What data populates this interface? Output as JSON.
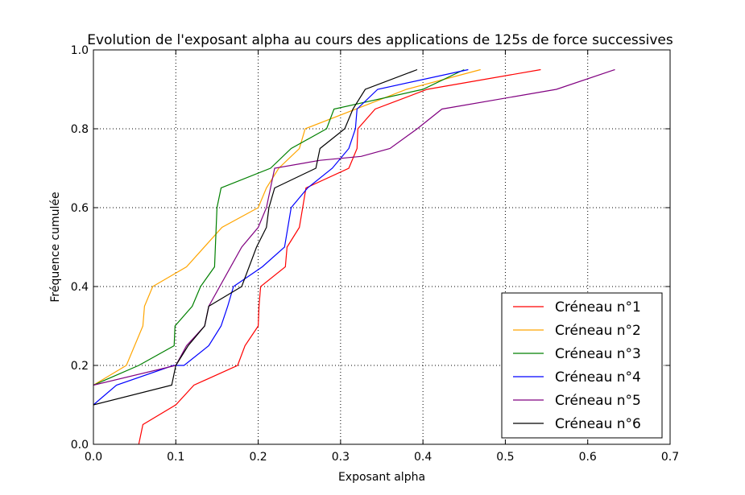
{
  "chart_data": {
    "type": "line",
    "title": "Evolution de l'exposant alpha au cours des applications de 125s de force successives",
    "xlabel": "Exposant alpha",
    "ylabel": "Fréquence cumulée",
    "xlim": [
      0.0,
      0.7
    ],
    "ylim": [
      0.0,
      1.0
    ],
    "xticks": [
      "0.0",
      "0.1",
      "0.2",
      "0.3",
      "0.4",
      "0.5",
      "0.6",
      "0.7"
    ],
    "yticks": [
      "0.0",
      "0.2",
      "0.4",
      "0.6",
      "0.8",
      "1.0"
    ],
    "grid": true,
    "legend_position": "bottom-right",
    "series": [
      {
        "name": "Créneau n°1",
        "color": "#ff0000",
        "points": [
          [
            0.055,
            0.0
          ],
          [
            0.06,
            0.05
          ],
          [
            0.1,
            0.1
          ],
          [
            0.122,
            0.15
          ],
          [
            0.175,
            0.2
          ],
          [
            0.184,
            0.25
          ],
          [
            0.2,
            0.3
          ],
          [
            0.201,
            0.35
          ],
          [
            0.203,
            0.4
          ],
          [
            0.233,
            0.45
          ],
          [
            0.235,
            0.5
          ],
          [
            0.25,
            0.55
          ],
          [
            0.254,
            0.6
          ],
          [
            0.258,
            0.65
          ],
          [
            0.31,
            0.7
          ],
          [
            0.32,
            0.75
          ],
          [
            0.321,
            0.8
          ],
          [
            0.342,
            0.85
          ],
          [
            0.405,
            0.9
          ],
          [
            0.543,
            0.95
          ]
        ]
      },
      {
        "name": "Créneau n°2",
        "color": "#ffa500",
        "points": [
          [
            0.0,
            0.15
          ],
          [
            0.04,
            0.2
          ],
          [
            0.06,
            0.3
          ],
          [
            0.062,
            0.35
          ],
          [
            0.072,
            0.4
          ],
          [
            0.113,
            0.45
          ],
          [
            0.156,
            0.55
          ],
          [
            0.2,
            0.6
          ],
          [
            0.21,
            0.65
          ],
          [
            0.225,
            0.7
          ],
          [
            0.25,
            0.75
          ],
          [
            0.257,
            0.8
          ],
          [
            0.38,
            0.9
          ],
          [
            0.47,
            0.95
          ]
        ]
      },
      {
        "name": "Créneau n°3",
        "color": "#008000",
        "points": [
          [
            0.0,
            0.15
          ],
          [
            0.055,
            0.2
          ],
          [
            0.098,
            0.25
          ],
          [
            0.099,
            0.3
          ],
          [
            0.12,
            0.35
          ],
          [
            0.13,
            0.4
          ],
          [
            0.147,
            0.45
          ],
          [
            0.148,
            0.5
          ],
          [
            0.15,
            0.6
          ],
          [
            0.155,
            0.65
          ],
          [
            0.215,
            0.7
          ],
          [
            0.24,
            0.75
          ],
          [
            0.283,
            0.8
          ],
          [
            0.292,
            0.85
          ],
          [
            0.4,
            0.9
          ],
          [
            0.45,
            0.95
          ]
        ]
      },
      {
        "name": "Créneau n°4",
        "color": "#0000ff",
        "points": [
          [
            0.0,
            0.1
          ],
          [
            0.028,
            0.15
          ],
          [
            0.097,
            0.2
          ],
          [
            0.11,
            0.2
          ],
          [
            0.14,
            0.25
          ],
          [
            0.155,
            0.3
          ],
          [
            0.163,
            0.35
          ],
          [
            0.17,
            0.4
          ],
          [
            0.205,
            0.45
          ],
          [
            0.232,
            0.5
          ],
          [
            0.24,
            0.6
          ],
          [
            0.26,
            0.65
          ],
          [
            0.29,
            0.7
          ],
          [
            0.31,
            0.75
          ],
          [
            0.318,
            0.8
          ],
          [
            0.32,
            0.85
          ],
          [
            0.345,
            0.9
          ],
          [
            0.455,
            0.95
          ]
        ]
      },
      {
        "name": "Créneau n°5",
        "color": "#800080",
        "points": [
          [
            0.0,
            0.15
          ],
          [
            0.1,
            0.2
          ],
          [
            0.113,
            0.25
          ],
          [
            0.135,
            0.3
          ],
          [
            0.14,
            0.35
          ],
          [
            0.18,
            0.5
          ],
          [
            0.2,
            0.55
          ],
          [
            0.21,
            0.6
          ],
          [
            0.22,
            0.7
          ],
          [
            0.275,
            0.72
          ],
          [
            0.325,
            0.73
          ],
          [
            0.36,
            0.75
          ],
          [
            0.393,
            0.8
          ],
          [
            0.423,
            0.85
          ],
          [
            0.562,
            0.9
          ],
          [
            0.633,
            0.95
          ]
        ]
      },
      {
        "name": "Créneau n°6",
        "color": "#000000",
        "points": [
          [
            0.0,
            0.1
          ],
          [
            0.095,
            0.15
          ],
          [
            0.1,
            0.2
          ],
          [
            0.115,
            0.25
          ],
          [
            0.135,
            0.3
          ],
          [
            0.14,
            0.35
          ],
          [
            0.18,
            0.4
          ],
          [
            0.198,
            0.5
          ],
          [
            0.21,
            0.55
          ],
          [
            0.213,
            0.6
          ],
          [
            0.22,
            0.65
          ],
          [
            0.27,
            0.7
          ],
          [
            0.275,
            0.75
          ],
          [
            0.305,
            0.8
          ],
          [
            0.315,
            0.85
          ],
          [
            0.33,
            0.9
          ],
          [
            0.393,
            0.95
          ]
        ]
      }
    ]
  }
}
